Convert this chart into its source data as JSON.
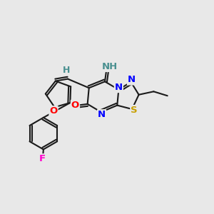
{
  "bg_color": "#e8e8e8",
  "bond_color": "#1a1a1a",
  "bond_width": 1.5,
  "dbo": 0.012,
  "fig_width": 3.0,
  "fig_height": 3.0,
  "dpi": 100,
  "colors": {
    "F": "#ff00cc",
    "O": "#ff0000",
    "N": "#0000ff",
    "S": "#c8a000",
    "H": "#4a9090",
    "C": "#1a1a1a"
  }
}
